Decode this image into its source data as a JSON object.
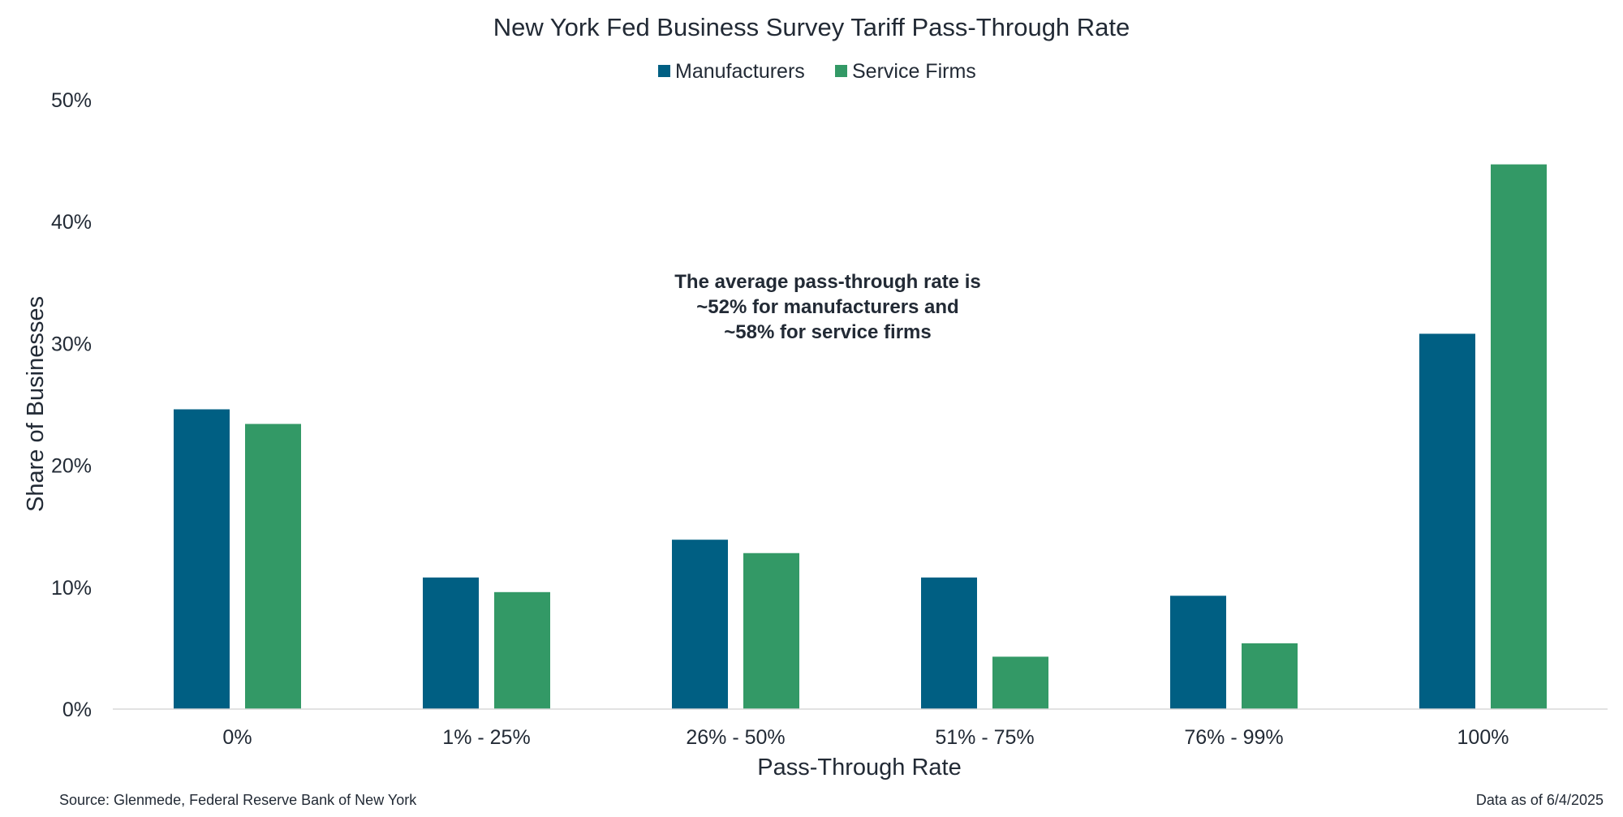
{
  "chart_data": {
    "type": "bar",
    "title": "New York Fed Business Survey Tariff Pass-Through Rate",
    "xlabel": "Pass-Through Rate",
    "ylabel": "Share of Businesses",
    "categories": [
      "0%",
      "1% - 25%",
      "26% - 50%",
      "51% - 75%",
      "76% - 99%",
      "100%"
    ],
    "series": [
      {
        "name": "Manufacturers",
        "color": "#005f83",
        "values": [
          24.6,
          10.8,
          13.9,
          10.8,
          9.3,
          30.8
        ]
      },
      {
        "name": "Service Firms",
        "color": "#339966",
        "values": [
          23.4,
          9.6,
          12.8,
          4.3,
          5.4,
          44.7
        ]
      }
    ],
    "ylim": [
      0,
      50
    ],
    "yticks": [
      0,
      10,
      20,
      30,
      40,
      50
    ],
    "ytick_labels": [
      "0%",
      "10%",
      "20%",
      "30%",
      "40%",
      "50%"
    ],
    "grid": false,
    "legend_position": "top-center",
    "annotation": [
      "The average pass-through rate is",
      "~52% for manufacturers and",
      "~58% for service firms"
    ]
  },
  "footer": {
    "source": "Source: Glenmede, Federal Reserve Bank of New York",
    "date": "Data as of 6/4/2025"
  }
}
